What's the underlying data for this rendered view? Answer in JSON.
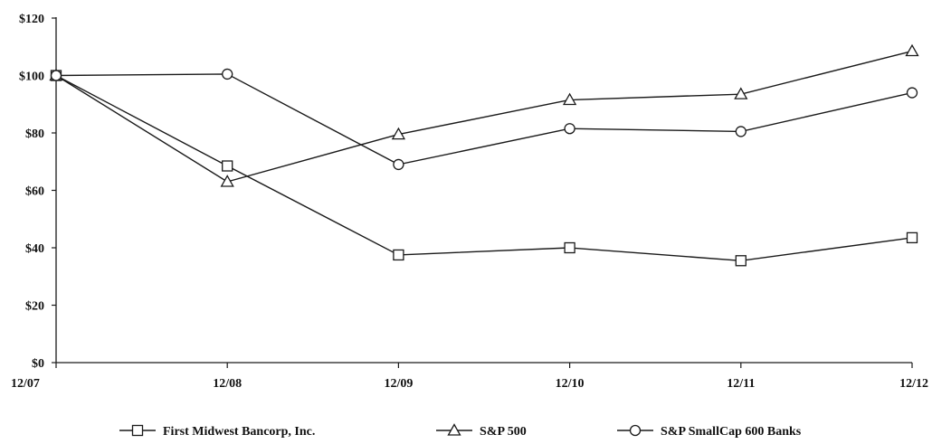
{
  "chart_data": {
    "type": "line",
    "title": "",
    "xlabel": "",
    "ylabel": "",
    "categories": [
      "12/07",
      "12/08",
      "12/09",
      "12/10",
      "12/11",
      "12/12"
    ],
    "ylim": [
      0,
      120
    ],
    "yticks": [
      0,
      20,
      40,
      60,
      80,
      100,
      120
    ],
    "ytick_labels": [
      "$0",
      "$20",
      "$40",
      "$60",
      "$80",
      "$100",
      "$120"
    ],
    "grid": false,
    "legend_position": "bottom",
    "series": [
      {
        "name": "First Midwest Bancorp, Inc.",
        "marker": "square",
        "values": [
          100,
          68.5,
          37.5,
          40,
          35.5,
          43.5
        ]
      },
      {
        "name": "S&P 500",
        "marker": "triangle",
        "values": [
          100,
          63,
          79.5,
          91.5,
          93.5,
          108.5
        ]
      },
      {
        "name": "S&P SmallCap 600 Banks",
        "marker": "circle",
        "values": [
          100,
          100.5,
          69,
          81.5,
          80.5,
          94
        ]
      }
    ],
    "colors": {
      "line": "#1a1a1a",
      "text": "#111111",
      "background": "#ffffff"
    }
  }
}
